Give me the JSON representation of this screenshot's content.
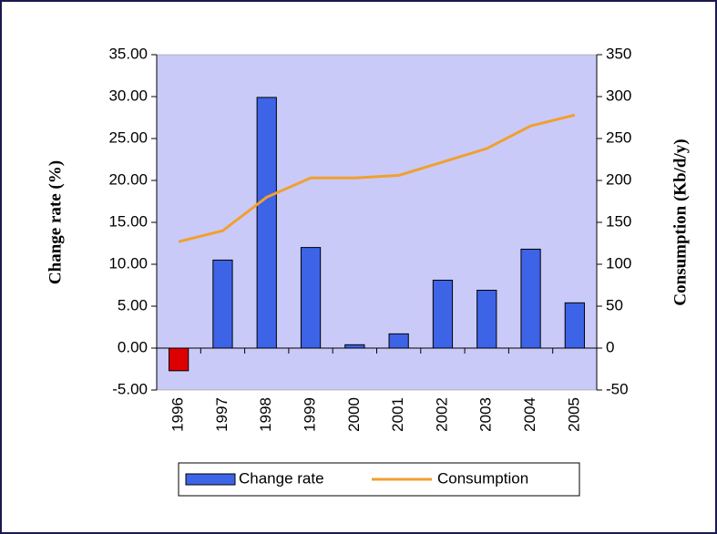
{
  "chart_data": {
    "type": "bar",
    "categories": [
      "1996",
      "1997",
      "1998",
      "1999",
      "2000",
      "2001",
      "2002",
      "2003",
      "2004",
      "2005"
    ],
    "series": [
      {
        "name": "Change rate",
        "type": "bar",
        "color": "#3d63e6",
        "negative_color": "#dd0000",
        "values": [
          -2.7,
          10.5,
          29.9,
          12.0,
          0.4,
          1.7,
          8.1,
          6.9,
          11.8,
          5.4
        ]
      },
      {
        "name": "Consumption",
        "type": "line",
        "axis": "y2",
        "color": "#f0a030",
        "values": [
          127,
          140,
          180,
          203,
          203,
          206,
          222,
          238,
          265,
          278
        ]
      }
    ],
    "ylabel": "Change rate (%)",
    "y2label": "Consumption (Kb/d/y)",
    "ylim": [
      -5,
      35
    ],
    "yticks": [
      {
        "value": -5,
        "label": "-5.00"
      },
      {
        "value": 0,
        "label": "0.00"
      },
      {
        "value": 5,
        "label": "5.00"
      },
      {
        "value": 10,
        "label": "10.00"
      },
      {
        "value": 15,
        "label": "15.00"
      },
      {
        "value": 20,
        "label": "20.00"
      },
      {
        "value": 25,
        "label": "25.00"
      },
      {
        "value": 30,
        "label": "30.00"
      },
      {
        "value": 35,
        "label": "35.00"
      }
    ],
    "y2lim": [
      -50,
      350
    ],
    "y2ticks": [
      -50,
      0,
      50,
      100,
      150,
      200,
      250,
      300,
      350
    ],
    "plot_background": "#cacaf8",
    "legend": "bottom"
  }
}
